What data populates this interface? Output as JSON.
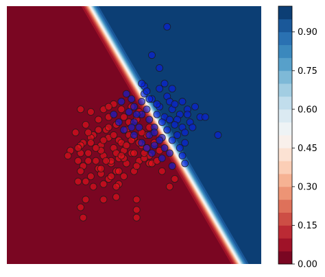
{
  "chart_data": {
    "type": "scatter",
    "title": "",
    "xlabel": "",
    "ylabel": "",
    "axes_visible": false,
    "xlim": [
      0,
      10
    ],
    "ylim": [
      0,
      10
    ],
    "background": {
      "type": "contourf",
      "cmap": "RdBu",
      "levels": [
        0.0,
        0.05,
        0.1,
        0.15,
        0.2,
        0.25,
        0.3,
        0.35,
        0.4,
        0.45,
        0.5,
        0.55,
        0.6,
        0.65,
        0.7,
        0.75,
        0.8,
        0.85,
        0.9,
        0.95,
        1.0
      ],
      "boundary": {
        "coef_x": 3.0,
        "coef_y": 1.77,
        "intercept": -27.5,
        "scale": 0.35
      }
    },
    "colorbar": {
      "range": [
        0.0,
        1.0
      ],
      "ticks": [
        0.0,
        0.15,
        0.3,
        0.45,
        0.6,
        0.75,
        0.9
      ],
      "tick_labels": [
        "0.00",
        "0.15",
        "0.30",
        "0.45",
        "0.60",
        "0.75",
        "0.90"
      ]
    },
    "series": [
      {
        "color": "#e8111b",
        "points": [
          [
            2.9,
            6.0
          ],
          [
            3.8,
            6.0
          ],
          [
            4.2,
            6.2
          ],
          [
            4.5,
            6.0
          ],
          [
            3.3,
            5.9
          ],
          [
            3.6,
            5.6
          ],
          [
            4.0,
            5.7
          ],
          [
            4.8,
            5.5
          ],
          [
            5.2,
            5.9
          ],
          [
            3.1,
            5.4
          ],
          [
            3.9,
            5.2
          ],
          [
            4.3,
            5.4
          ],
          [
            4.7,
            5.2
          ],
          [
            5.6,
            5.3
          ],
          [
            2.7,
            5.1
          ],
          [
            3.4,
            5.0
          ],
          [
            4.0,
            4.9
          ],
          [
            4.4,
            4.8
          ],
          [
            5.0,
            4.9
          ],
          [
            5.5,
            5.0
          ],
          [
            3.0,
            4.7
          ],
          [
            3.7,
            4.6
          ],
          [
            4.2,
            4.5
          ],
          [
            4.6,
            4.4
          ],
          [
            5.3,
            4.6
          ],
          [
            5.8,
            4.7
          ],
          [
            2.5,
            4.4
          ],
          [
            3.2,
            4.3
          ],
          [
            3.8,
            4.2
          ],
          [
            4.4,
            4.1
          ],
          [
            4.9,
            4.3
          ],
          [
            5.6,
            4.2
          ],
          [
            6.0,
            4.4
          ],
          [
            2.4,
            4.2
          ],
          [
            2.8,
            4.0
          ],
          [
            3.5,
            4.0
          ],
          [
            4.1,
            3.9
          ],
          [
            4.7,
            3.9
          ],
          [
            5.2,
            4.0
          ],
          [
            5.4,
            4.1
          ],
          [
            3.0,
            3.8
          ],
          [
            3.6,
            3.7
          ],
          [
            4.3,
            3.6
          ],
          [
            5.0,
            3.6
          ],
          [
            5.6,
            3.9
          ],
          [
            3.3,
            3.4
          ],
          [
            4.0,
            3.3
          ],
          [
            4.6,
            3.4
          ],
          [
            6.1,
            3.6
          ],
          [
            3.1,
            3.2
          ],
          [
            4.4,
            3.1
          ],
          [
            6.4,
            3.0
          ],
          [
            6.6,
            3.3
          ],
          [
            3.4,
            3.0
          ],
          [
            4.3,
            3.0
          ],
          [
            2.9,
            4.6
          ],
          [
            3.3,
            4.9
          ],
          [
            4.6,
            5.7
          ],
          [
            5.1,
            5.6
          ],
          [
            4.9,
            6.1
          ],
          [
            4.0,
            6.1
          ],
          [
            4.3,
            2.6
          ],
          [
            5.1,
            2.5
          ],
          [
            3.1,
            2.5
          ],
          [
            3.8,
            3.1
          ],
          [
            3.2,
            4.0
          ],
          [
            3.7,
            4.4
          ],
          [
            4.1,
            4.0
          ],
          [
            5.0,
            4.3
          ],
          [
            5.5,
            4.5
          ],
          [
            2.9,
            4.3
          ],
          [
            3.5,
            4.5
          ],
          [
            4.5,
            4.7
          ],
          [
            4.0,
            5.3
          ],
          [
            3.6,
            5.2
          ],
          [
            4.8,
            5.0
          ],
          [
            2.8,
            4.5
          ],
          [
            3.9,
            4.0
          ],
          [
            4.6,
            4.1
          ],
          [
            5.1,
            3.8
          ],
          [
            4.2,
            5.0
          ],
          [
            5.7,
            3.9
          ],
          [
            4.3,
            4.3
          ],
          [
            3.7,
            3.5
          ],
          [
            2.9,
            3.6
          ],
          [
            4.1,
            3.4
          ],
          [
            5.2,
            4.7
          ],
          [
            3.3,
            4.7
          ],
          [
            5.3,
            5.1
          ],
          [
            3.8,
            4.8
          ],
          [
            4.7,
            4.6
          ],
          [
            5.4,
            4.3
          ],
          [
            2.8,
            3.2
          ],
          [
            3.2,
            5.1
          ],
          [
            4.9,
            4.8
          ],
          [
            4.5,
            4.2
          ],
          [
            3.7,
            3.7
          ],
          [
            4.4,
            3.6
          ],
          [
            5.9,
            4.0
          ],
          [
            2.9,
            2.2
          ],
          [
            3.8,
            2.5
          ],
          [
            5.1,
            2.1
          ],
          [
            5.1,
            1.8
          ],
          [
            3.0,
            1.8
          ]
        ]
      },
      {
        "color": "#0a1fe0",
        "points": [
          [
            6.3,
            9.2
          ],
          [
            5.7,
            8.1
          ],
          [
            6.0,
            7.6
          ],
          [
            6.2,
            7.0
          ],
          [
            5.4,
            6.9
          ],
          [
            6.0,
            6.8
          ],
          [
            6.5,
            6.8
          ],
          [
            4.7,
            6.6
          ],
          [
            5.4,
            6.6
          ],
          [
            6.3,
            6.5
          ],
          [
            4.5,
            6.3
          ],
          [
            4.9,
            6.4
          ],
          [
            5.3,
            6.3
          ],
          [
            5.7,
            6.4
          ],
          [
            6.4,
            6.3
          ],
          [
            6.9,
            6.3
          ],
          [
            5.0,
            6.1
          ],
          [
            5.5,
            6.0
          ],
          [
            6.0,
            6.1
          ],
          [
            6.5,
            6.0
          ],
          [
            7.1,
            6.0
          ],
          [
            7.4,
            6.1
          ],
          [
            4.2,
            5.8
          ],
          [
            4.8,
            5.9
          ],
          [
            5.3,
            5.8
          ],
          [
            5.9,
            5.8
          ],
          [
            6.2,
            5.7
          ],
          [
            6.8,
            5.8
          ],
          [
            7.6,
            5.7
          ],
          [
            4.4,
            5.5
          ],
          [
            5.0,
            5.5
          ],
          [
            5.6,
            5.6
          ],
          [
            6.1,
            5.5
          ],
          [
            6.7,
            5.6
          ],
          [
            7.2,
            5.5
          ],
          [
            7.8,
            5.7
          ],
          [
            4.6,
            5.2
          ],
          [
            5.2,
            5.3
          ],
          [
            5.8,
            5.3
          ],
          [
            6.3,
            5.2
          ],
          [
            6.9,
            5.3
          ],
          [
            7.0,
            5.1
          ],
          [
            5.0,
            5.0
          ],
          [
            5.6,
            5.0
          ],
          [
            6.1,
            4.9
          ],
          [
            6.5,
            4.8
          ],
          [
            7.0,
            4.7
          ],
          [
            5.3,
            4.7
          ],
          [
            5.8,
            4.6
          ],
          [
            6.2,
            4.5
          ],
          [
            6.8,
            4.5
          ],
          [
            5.7,
            4.3
          ],
          [
            6.4,
            4.3
          ],
          [
            6.9,
            4.2
          ],
          [
            6.1,
            4.1
          ],
          [
            7.0,
            3.9
          ],
          [
            6.5,
            3.8
          ],
          [
            8.3,
            5.0
          ],
          [
            5.5,
            6.7
          ],
          [
            5.9,
            6.2
          ],
          [
            6.6,
            5.4
          ],
          [
            7.3,
            5.3
          ],
          [
            5.1,
            5.8
          ],
          [
            5.5,
            4.5
          ],
          [
            6.0,
            4.8
          ],
          [
            6.6,
            6.2
          ],
          [
            5.3,
            7.0
          ],
          [
            4.9,
            5.3
          ],
          [
            6.7,
            5.0
          ],
          [
            7.1,
            5.8
          ],
          [
            5.8,
            5.1
          ],
          [
            6.4,
            5.6
          ],
          [
            5.6,
            6.4
          ]
        ]
      }
    ]
  }
}
